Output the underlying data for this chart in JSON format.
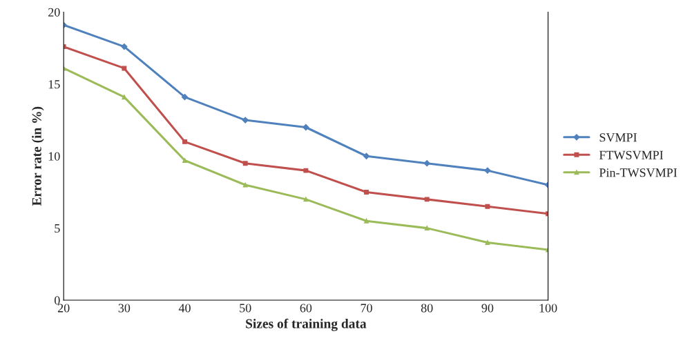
{
  "chart_data": {
    "type": "line",
    "xlabel": "Sizes of training data",
    "ylabel": "Error rate (in %)",
    "x": [
      20,
      30,
      40,
      50,
      60,
      70,
      80,
      90,
      100
    ],
    "xlim": [
      20,
      100
    ],
    "xticks": [
      20,
      30,
      40,
      50,
      60,
      70,
      80,
      90,
      100
    ],
    "ylim": [
      0,
      20
    ],
    "yticks": [
      0,
      5,
      10,
      15,
      20
    ],
    "grid": false,
    "legend": "right",
    "series": [
      {
        "name": "SVMPI",
        "color": "#4f81bd",
        "marker": "diamond",
        "values": [
          19.1,
          17.6,
          14.1,
          12.5,
          12.0,
          10.0,
          9.5,
          9.0,
          8.0
        ]
      },
      {
        "name": "FTWSVMPI",
        "color": "#c0504d",
        "marker": "square",
        "values": [
          17.6,
          16.1,
          11.0,
          9.5,
          9.0,
          7.5,
          7.0,
          6.5,
          6.0
        ]
      },
      {
        "name": "Pin-TWSVMPI",
        "color": "#9bbb59",
        "marker": "triangle",
        "values": [
          16.1,
          14.1,
          9.7,
          8.0,
          7.0,
          5.5,
          5.0,
          4.0,
          3.5
        ]
      }
    ]
  }
}
